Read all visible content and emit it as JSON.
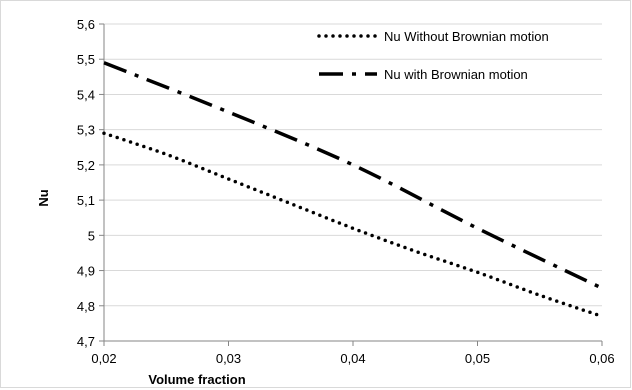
{
  "chart_data": {
    "type": "line",
    "xlabel": "Volume fraction",
    "ylabel": "Nu",
    "xlim": [
      0.02,
      0.06
    ],
    "ylim": [
      4.7,
      5.6
    ],
    "x_ticks": [
      "0,02",
      "0,03",
      "0,04",
      "0,05",
      "0,06"
    ],
    "y_ticks": [
      "4,7",
      "4,8",
      "4,9",
      "5",
      "5,1",
      "5,2",
      "5,3",
      "5,4",
      "5,5",
      "5,6"
    ],
    "grid": "horizontal",
    "legend_position": "top-right",
    "series": [
      {
        "name": "Nu Without Brownian motion",
        "style": "dotted",
        "color": "#000000",
        "x": [
          0.02,
          0.025,
          0.03,
          0.035,
          0.04,
          0.045,
          0.05,
          0.055,
          0.06
        ],
        "y": [
          5.29,
          5.23,
          5.16,
          5.09,
          5.02,
          4.955,
          4.895,
          4.83,
          4.77
        ]
      },
      {
        "name": "Nu with Brownian motion",
        "style": "dash-dot",
        "color": "#000000",
        "x": [
          0.02,
          0.03,
          0.04,
          0.05,
          0.06
        ],
        "y": [
          5.49,
          5.35,
          5.2,
          5.02,
          4.85
        ]
      }
    ]
  }
}
